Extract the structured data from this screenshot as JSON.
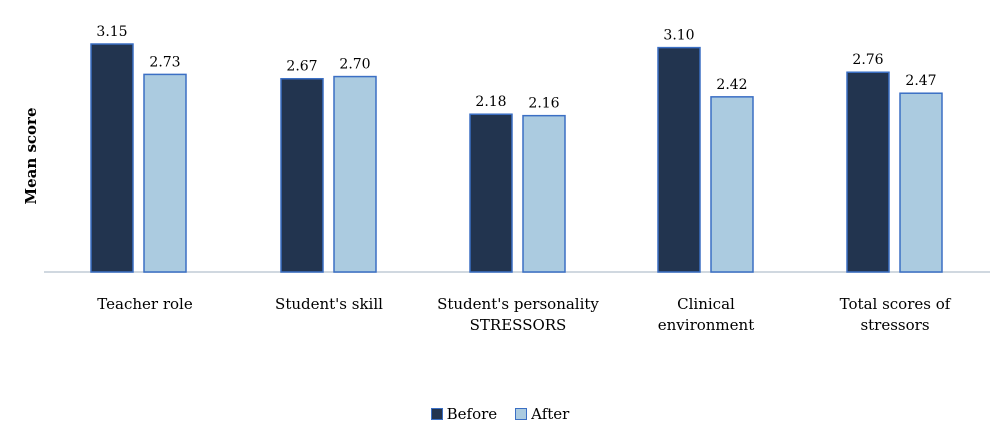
{
  "chart_data": {
    "type": "bar",
    "ylabel": "Mean score",
    "xlabel": "",
    "categories": [
      [
        "Teacher role"
      ],
      [
        "Student's skill"
      ],
      [
        "Student's personality",
        "STRESSORS"
      ],
      [
        "Clinical",
        "environment"
      ],
      [
        "Total scores of",
        "stressors"
      ]
    ],
    "series": [
      {
        "name": "Before",
        "color": "#22344f",
        "values": [
          3.15,
          2.67,
          2.18,
          3.1,
          2.76
        ],
        "labels": [
          "3.15",
          "2.67",
          "2.18",
          "3.10",
          "2.76"
        ]
      },
      {
        "name": "After",
        "color": "#abcbe0",
        "values": [
          2.73,
          2.7,
          2.16,
          2.42,
          2.47
        ],
        "labels": [
          "2.73",
          "2.70",
          "2.16",
          "2.42",
          "2.47"
        ]
      }
    ],
    "ylim": [
      0,
      3.15
    ],
    "grid": false,
    "legend_position": "bottom",
    "bar_border_color": "#3b6fc4",
    "axis_color": "#d0d8e0"
  }
}
